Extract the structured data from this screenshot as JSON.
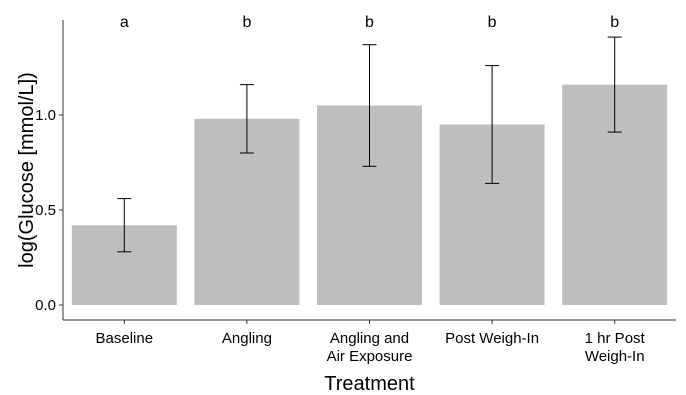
{
  "chart_data": {
    "type": "bar",
    "title": "",
    "xlabel": "Treatment",
    "ylabel": "log(Glucose [mmol/L])",
    "ylim": [
      0,
      1.35
    ],
    "yticks": [
      "0.0",
      "0.5",
      "1.0"
    ],
    "grid": false,
    "categories": [
      [
        "Baseline"
      ],
      [
        "Angling"
      ],
      [
        "Angling and",
        "Air Exposure"
      ],
      [
        "Post Weigh-In"
      ],
      [
        "1 hr Post",
        "Weigh-In"
      ]
    ],
    "values": [
      0.42,
      0.98,
      1.05,
      0.95,
      1.16
    ],
    "error_low": [
      0.28,
      0.8,
      0.73,
      0.64,
      0.91
    ],
    "error_high": [
      0.56,
      1.16,
      1.37,
      1.26,
      1.41
    ],
    "significance_letters": [
      "a",
      "b",
      "b",
      "b",
      "b"
    ],
    "colors": {
      "bar": "#bebebe",
      "axis": "#333333",
      "error": "#000000"
    }
  }
}
